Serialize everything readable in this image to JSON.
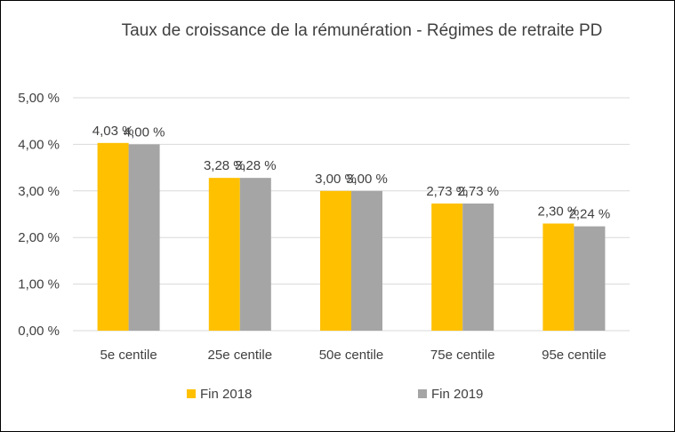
{
  "chart_data": {
    "type": "bar",
    "title": "Taux de croissance de la rémunération - Régimes de retraite PD",
    "xlabel": "",
    "ylabel": "",
    "categories": [
      "5e centile",
      "25e centile",
      "50e centile",
      "75e centile",
      "95e centile"
    ],
    "series": [
      {
        "name": "Fin 2018",
        "color": "#ffc000",
        "values": [
          4.03,
          3.28,
          3.0,
          2.73,
          2.3
        ],
        "labels": [
          "4,03 %",
          "3,28 %",
          "3,00 %",
          "2,73 %",
          "2,30 %"
        ]
      },
      {
        "name": "Fin 2019",
        "color": "#a5a5a5",
        "values": [
          4.0,
          3.28,
          3.0,
          2.73,
          2.24
        ],
        "labels": [
          "4,00 %",
          "3,28 %",
          "3,00 %",
          "2,73 %",
          "2,24 %"
        ]
      }
    ],
    "ylim": [
      0,
      5
    ],
    "yticks": [
      0,
      1,
      2,
      3,
      4,
      5
    ],
    "ytick_labels": [
      "0,00 %",
      "1,00 %",
      "2,00 %",
      "3,00 %",
      "4,00 %",
      "5,00 %"
    ],
    "grid": true,
    "legend_position": "bottom"
  }
}
